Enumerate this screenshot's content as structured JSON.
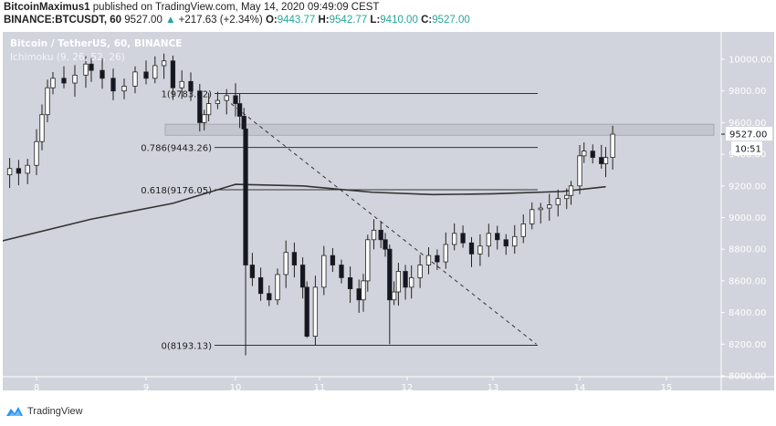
{
  "header": {
    "author": "BitcoinMaximus1",
    "published_text": " published on TradingView.com, May 14, 2020 09:49:09 CEST",
    "symbol": "BINANCE:BTCUSDT, 60",
    "last_price": "9527.00",
    "change": "+217.63 (+2.34%)",
    "change_arrow": "▲",
    "open_label": "O:",
    "open": "9443.77",
    "high_label": "H:",
    "high": "9542.77",
    "low_label": "L:",
    "low": "9410.00",
    "close_label": "C:",
    "close": "9527.00"
  },
  "legend": {
    "title": "Bitcoin / TetherUS, 60, BINANCE",
    "indicator": "Ichimoku (9, 26, 52, 26)"
  },
  "price_axis": {
    "current_price_label": "9527.00",
    "countdown": "10:51"
  },
  "footer": {
    "brand": "TradingView"
  },
  "colors": {
    "background": "#d1d4dc",
    "axis_text": "#ffffff",
    "candle_up": "#ffffff",
    "candle_down": "#131722",
    "line": "#333333",
    "positive": "#26a69a",
    "brand_blue": "#2196f3"
  },
  "chart_data": {
    "type": "candlestick",
    "title": "Bitcoin / TetherUS, 60, BINANCE",
    "xlabel": "",
    "ylabel": "",
    "x_ticks": [
      "8",
      "9",
      "10",
      "11",
      "12",
      "13",
      "14",
      "15"
    ],
    "y_ticks": [
      "10000.00",
      "9800.00",
      "9600.00",
      "9400.00",
      "9200.00",
      "9000.00",
      "8800.00",
      "8600.00",
      "8400.00",
      "8200.00",
      "8000.00"
    ],
    "ylim": [
      8000,
      10150
    ],
    "grid": false,
    "fib_levels": [
      {
        "ratio": "1",
        "price": 9783.62,
        "label": "1(9783.62)"
      },
      {
        "ratio": "0.786",
        "price": 9443.26,
        "label": "0.786(9443.26)"
      },
      {
        "ratio": "0.618",
        "price": 9176.05,
        "label": "0.618(9176.05)"
      },
      {
        "ratio": "0",
        "price": 8193.13,
        "label": "0(8193.13)"
      }
    ],
    "resistance_zone": [
      9520,
      9590
    ],
    "trendline": {
      "from": {
        "day": 9.95,
        "price": 9720
      },
      "to": {
        "day": 13.5,
        "price": 8200
      },
      "style": "dashed"
    },
    "moving_average": [
      {
        "day": 7.6,
        "price": 8850
      },
      {
        "day": 8.5,
        "price": 8990
      },
      {
        "day": 9.3,
        "price": 9090
      },
      {
        "day": 10.0,
        "price": 9210
      },
      {
        "day": 10.8,
        "price": 9200
      },
      {
        "day": 11.6,
        "price": 9160
      },
      {
        "day": 12.3,
        "price": 9145
      },
      {
        "day": 13.0,
        "price": 9150
      },
      {
        "day": 13.8,
        "price": 9165
      },
      {
        "day": 14.3,
        "price": 9195
      }
    ],
    "last": {
      "open": 9443.77,
      "high": 9542.77,
      "low": 9410.0,
      "close": 9527.0
    }
  }
}
